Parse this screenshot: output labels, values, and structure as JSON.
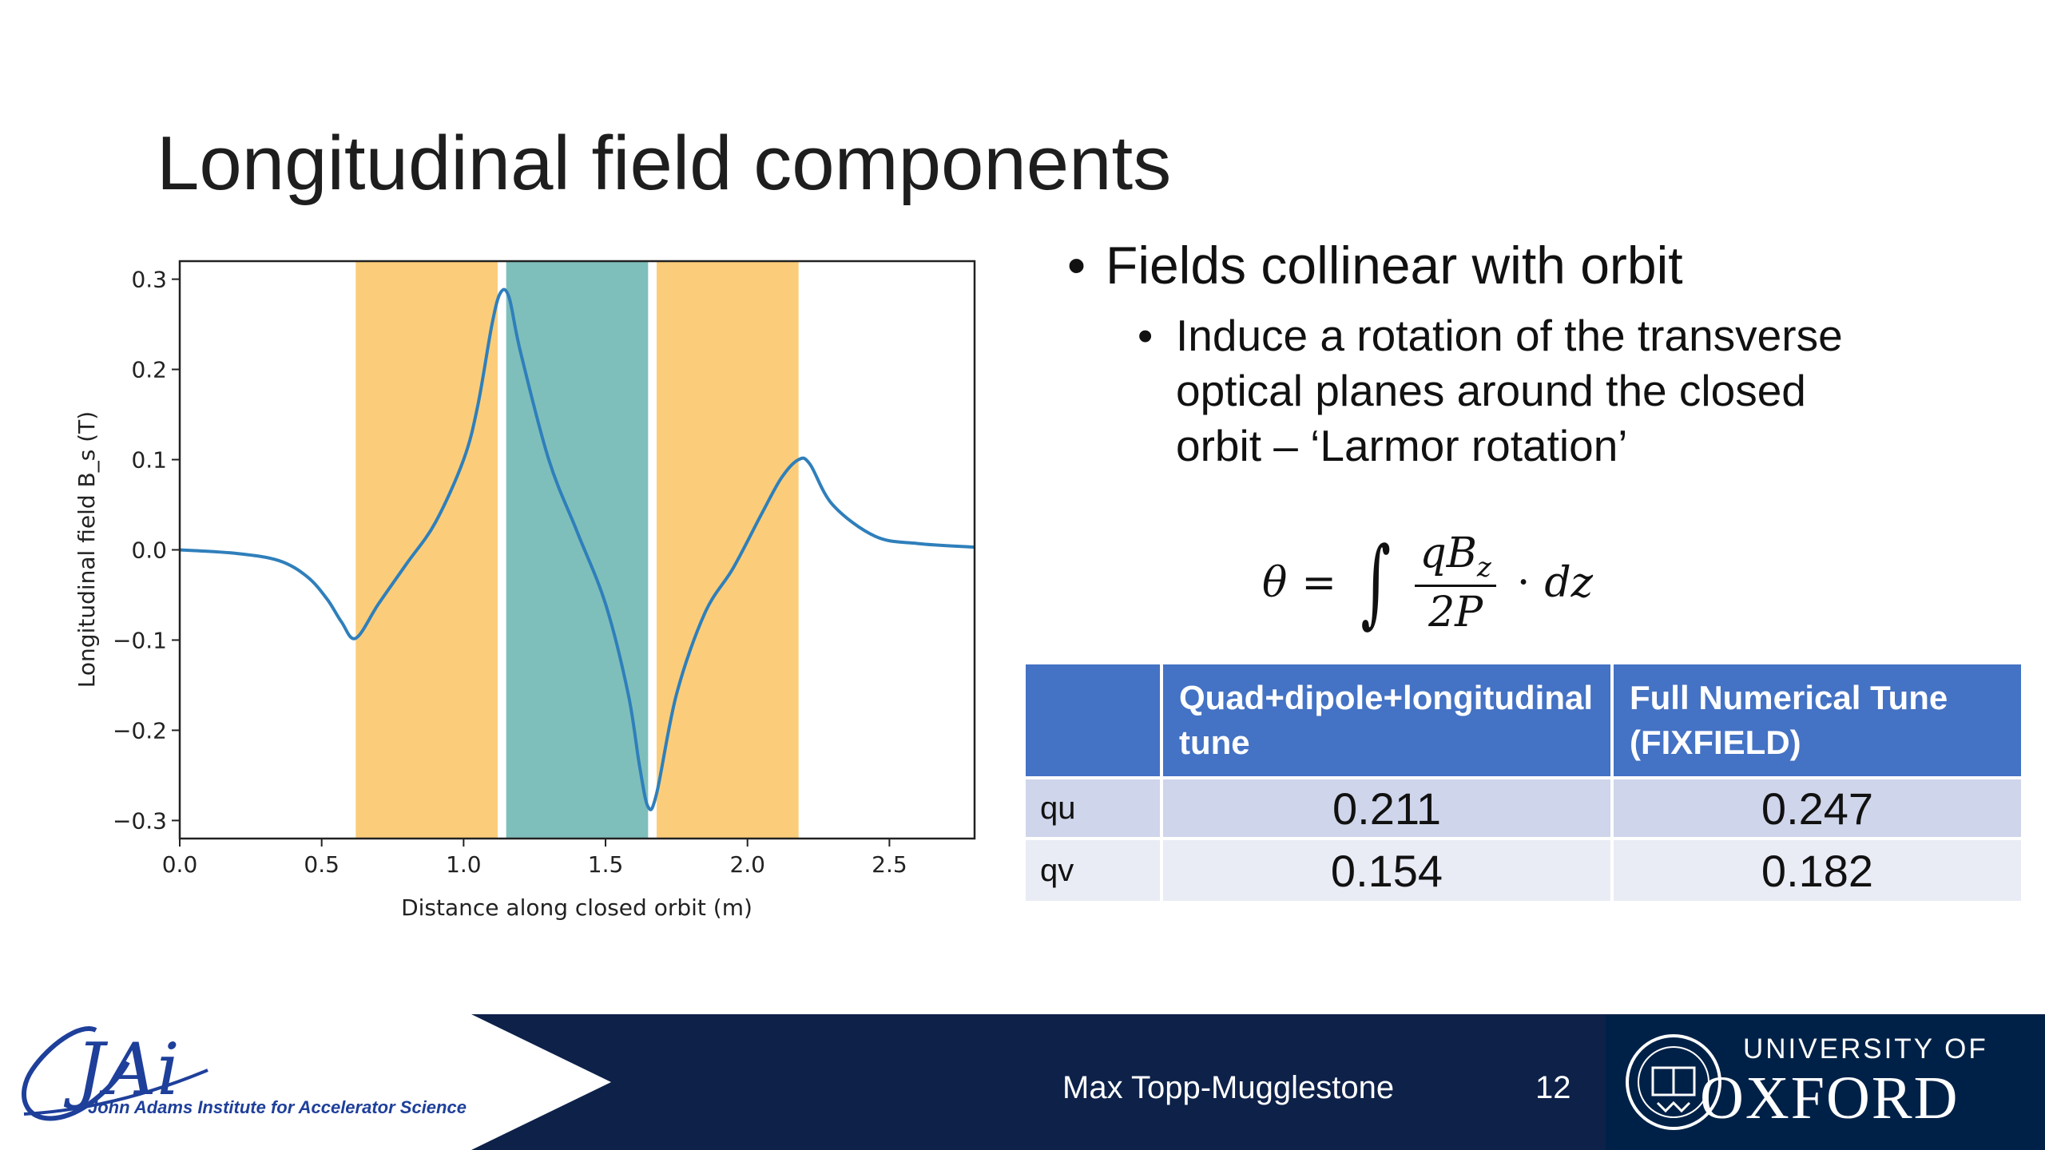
{
  "slide": {
    "title": "Longitudinal field components",
    "bullet_main": "Fields collinear with orbit",
    "bullet_sub": "Induce a rotation of the transverse optical planes around the closed orbit – ‘Larmor rotation’"
  },
  "formula": {
    "lhs": "θ",
    "eq": "=",
    "int": "∫",
    "num": "qB",
    "num_sub": "z",
    "den": "2P",
    "dot": "·",
    "tail": "dz"
  },
  "table": {
    "headers": [
      "",
      "Quad+dipole+longitudinal tune",
      "Full Numerical Tune (FIXFIELD)"
    ],
    "rows": [
      {
        "label": "qu",
        "values": [
          "0.211",
          "0.247"
        ]
      },
      {
        "label": "qv",
        "values": [
          "0.154",
          "0.182"
        ]
      }
    ]
  },
  "footer": {
    "presenter": "Max Topp-Mugglestone",
    "page_number": "12",
    "institute_logo_text": "JAi",
    "institute_name": "John Adams Institute for Accelerator Science",
    "university_line1": "UNIVERSITY OF",
    "university_line2": "OXFORD"
  },
  "colors": {
    "bar": "#0d2149",
    "table_header": "#4472c4",
    "band_orange": "#fbcd7a",
    "band_teal": "#7fbfbb",
    "line": "#2f7fbb"
  },
  "chart_data": {
    "type": "line",
    "xlabel": "Distance along closed orbit (m)",
    "ylabel": "Longitudinal field B_s (T)",
    "xlim": [
      0.0,
      2.8
    ],
    "ylim": [
      -0.32,
      0.32
    ],
    "xticks": [
      "0.0",
      "0.5",
      "1.0",
      "1.5",
      "2.0",
      "2.5"
    ],
    "xtick_values": [
      0.0,
      0.5,
      1.0,
      1.5,
      2.0,
      2.5
    ],
    "yticks": [
      "0.3",
      "0.2",
      "0.1",
      "0.0",
      "−0.1",
      "−0.2",
      "−0.3"
    ],
    "ytick_values": [
      0.3,
      0.2,
      0.1,
      0.0,
      -0.1,
      -0.2,
      -0.3
    ],
    "bands": [
      {
        "x0": 0.62,
        "x1": 1.12,
        "color": "orange"
      },
      {
        "x0": 1.15,
        "x1": 1.65,
        "color": "teal"
      },
      {
        "x0": 1.68,
        "x1": 2.18,
        "color": "orange"
      }
    ],
    "series": [
      {
        "x": [
          0.0,
          0.2,
          0.35,
          0.45,
          0.52,
          0.57,
          0.62,
          0.7,
          0.8,
          0.9,
          1.0,
          1.05,
          1.1,
          1.13,
          1.16,
          1.2,
          1.3,
          1.4,
          1.5,
          1.58,
          1.62,
          1.65,
          1.68,
          1.75,
          1.85,
          1.95,
          2.05,
          2.12,
          2.18,
          2.22,
          2.3,
          2.45,
          2.6,
          2.8
        ],
        "y": [
          0.0,
          -0.004,
          -0.012,
          -0.03,
          -0.055,
          -0.08,
          -0.098,
          -0.06,
          -0.015,
          0.03,
          0.1,
          0.16,
          0.25,
          0.285,
          0.28,
          0.22,
          0.1,
          0.02,
          -0.06,
          -0.16,
          -0.24,
          -0.285,
          -0.27,
          -0.16,
          -0.07,
          -0.02,
          0.04,
          0.08,
          0.1,
          0.095,
          0.05,
          0.015,
          0.007,
          0.003
        ]
      }
    ]
  }
}
